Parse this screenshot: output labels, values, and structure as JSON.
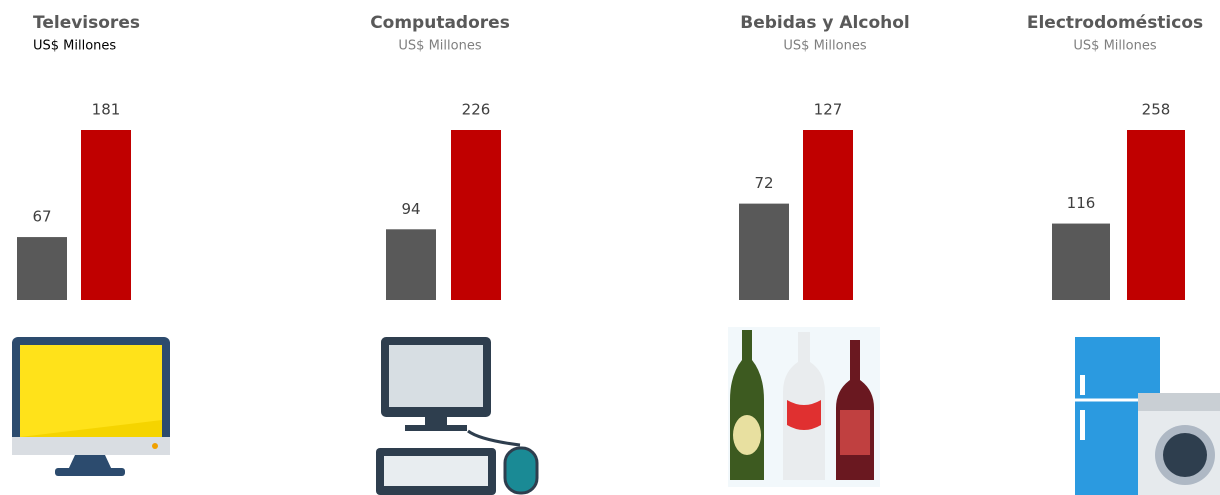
{
  "chart_data": [
    {
      "type": "bar",
      "title": "Televisores",
      "subtitle": "US$ Millones",
      "values": [
        67,
        181
      ],
      "colors": [
        "#595959",
        "#c00000"
      ]
    },
    {
      "type": "bar",
      "title": "Computadores",
      "subtitle": "US$ Millones",
      "values": [
        94,
        226
      ],
      "colors": [
        "#595959",
        "#c00000"
      ]
    },
    {
      "type": "bar",
      "title": "Bebidas y Alcohol",
      "subtitle": "US$ Millones",
      "values": [
        72,
        127
      ],
      "colors": [
        "#595959",
        "#c00000"
      ]
    },
    {
      "type": "bar",
      "title": "Electrodomésticos",
      "subtitle": "US$ Millones",
      "values": [
        116,
        258
      ],
      "colors": [
        "#595959",
        "#c00000"
      ]
    }
  ]
}
